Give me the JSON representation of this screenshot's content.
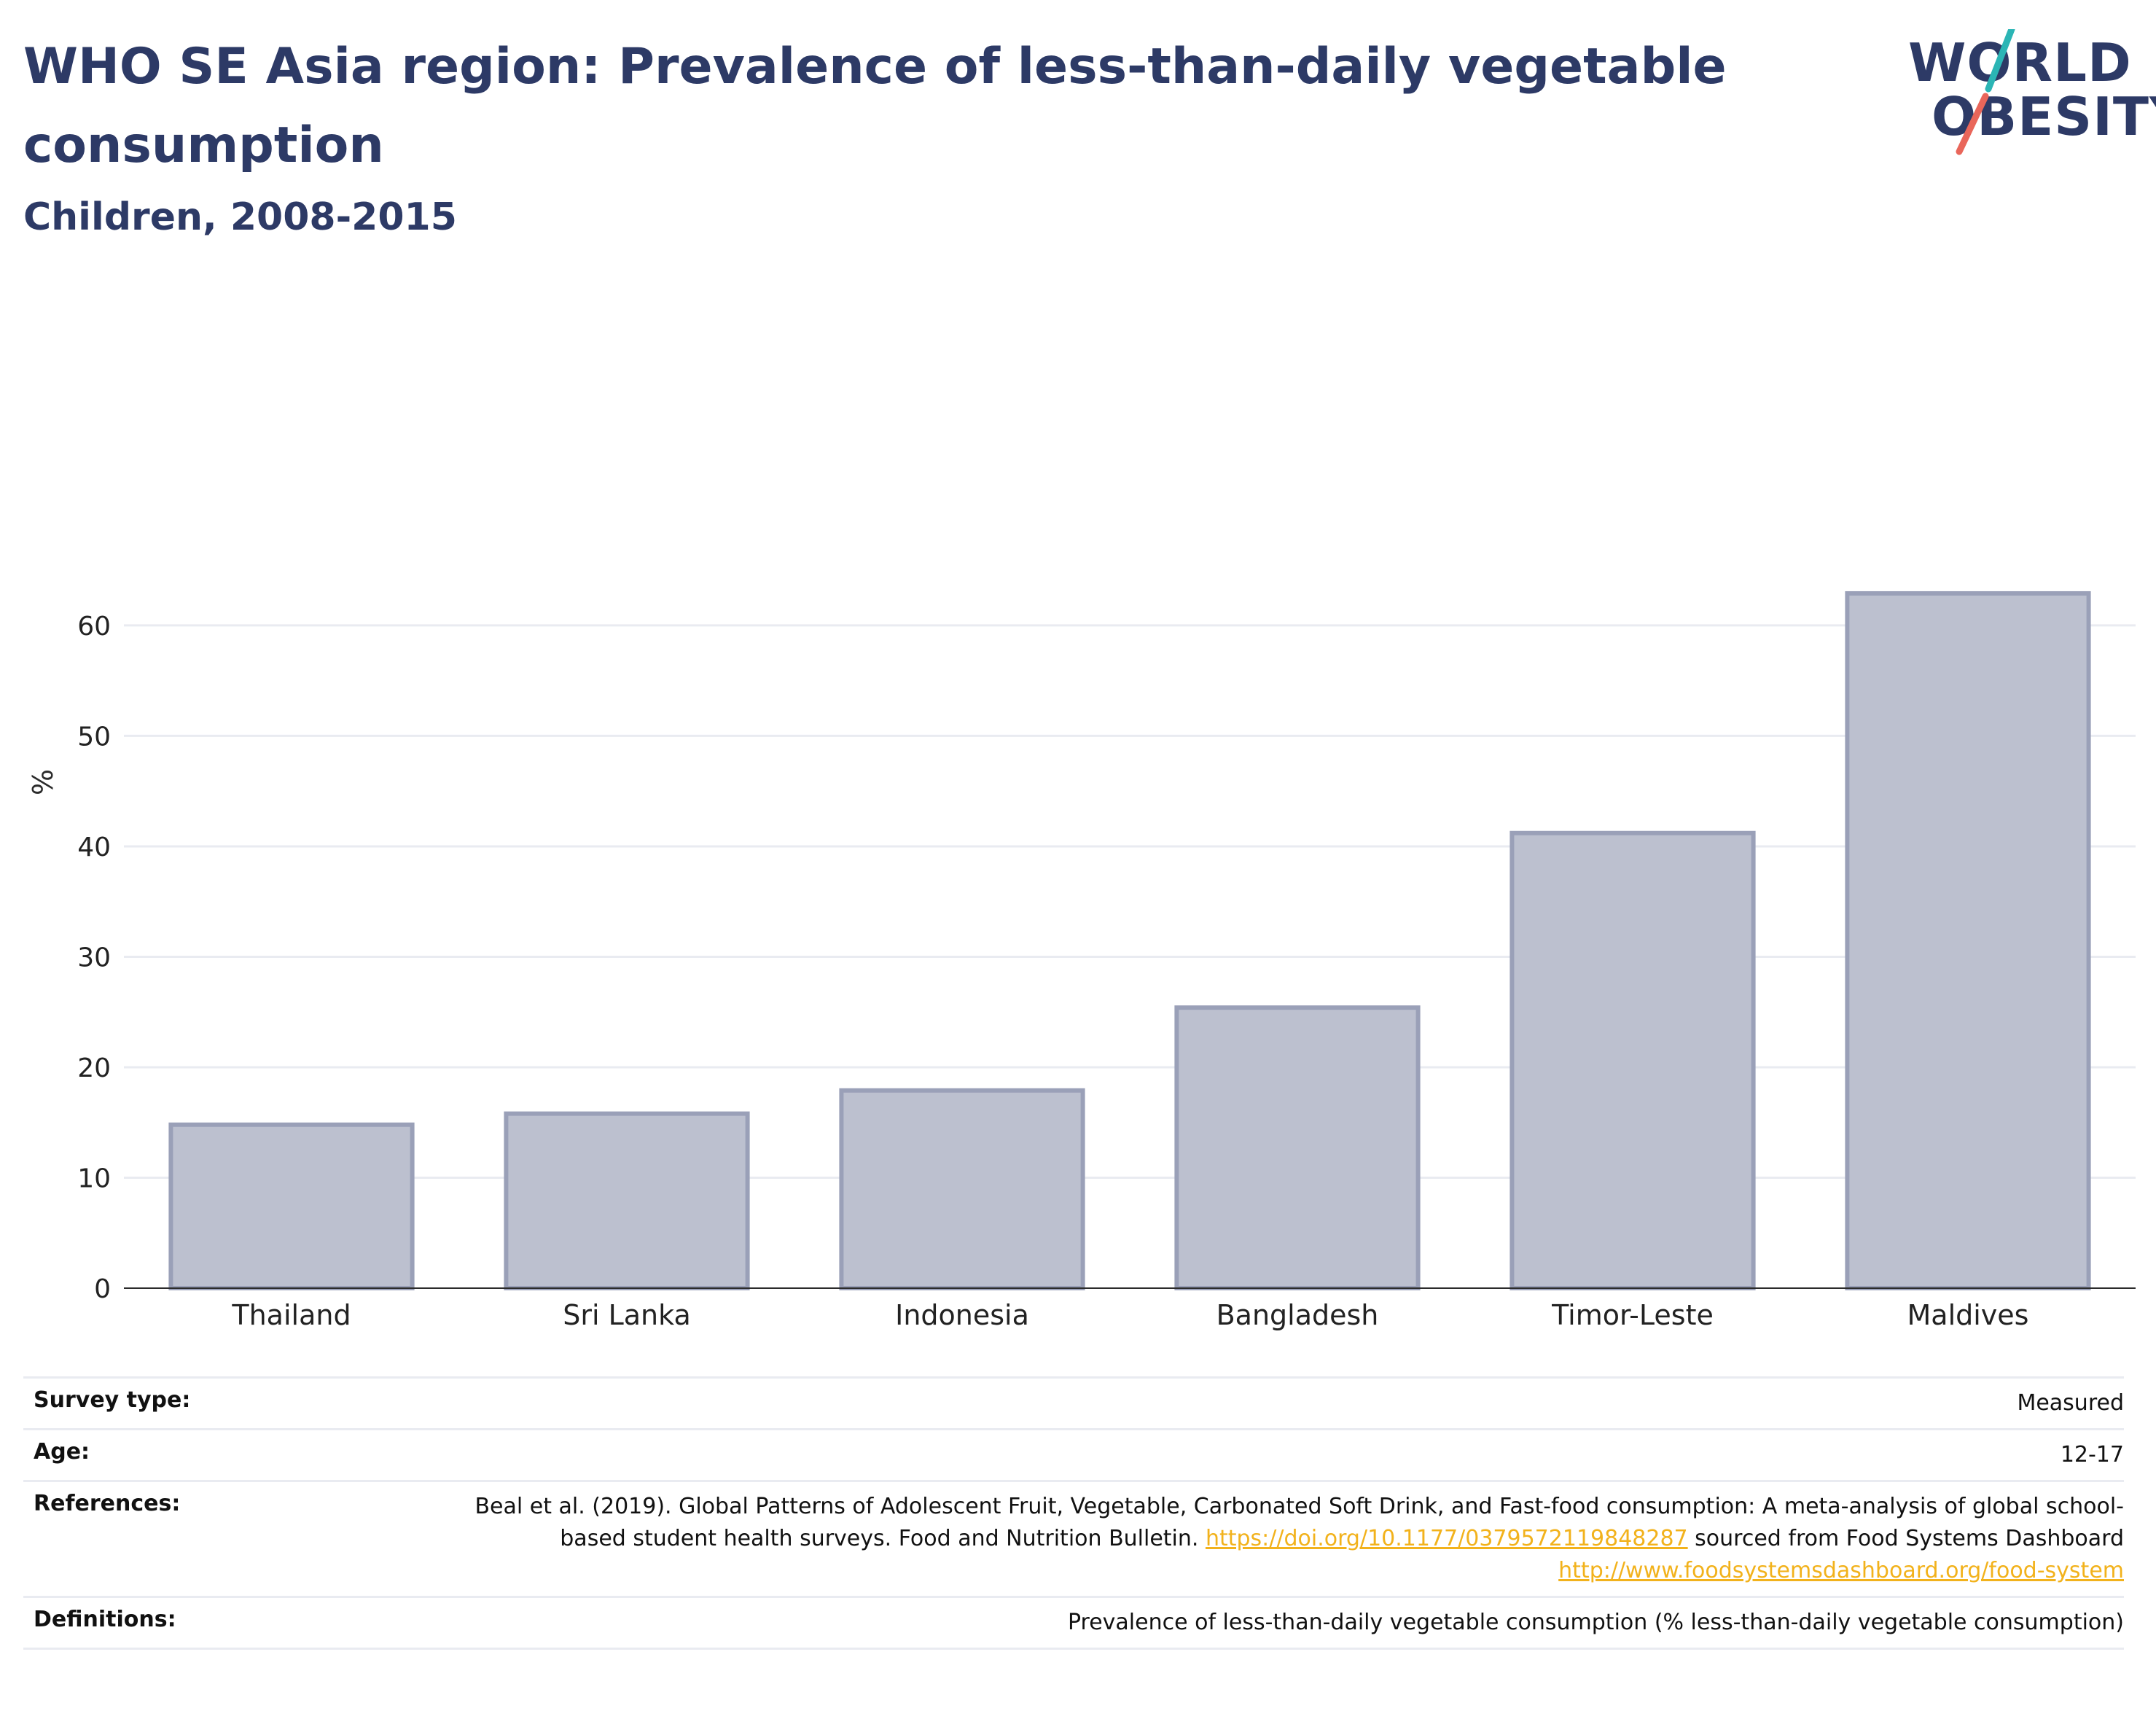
{
  "title": "WHO SE Asia region: Prevalence of less-than-daily vegetable consumption",
  "subtitle": "Children, 2008-2015",
  "logo": {
    "line1": "WORLD",
    "line2": "OBESITY"
  },
  "colors": {
    "bar_fill": "#bcc0cf",
    "bar_stroke": "#9aa0b8",
    "title": "#2d3a66",
    "link": "#f2b21c",
    "logo_teal": "#2bb5b5",
    "logo_red": "#e9665a"
  },
  "chart_data": {
    "type": "bar",
    "categories": [
      "Thailand",
      "Sri Lanka",
      "Indonesia",
      "Bangladesh",
      "Timor-Leste",
      "Maldives"
    ],
    "values": [
      14.8,
      15.8,
      17.9,
      25.4,
      41.2,
      62.9
    ],
    "ylabel": "%",
    "ylim": [
      0,
      66
    ],
    "yticks": [
      0,
      10,
      20,
      30,
      40,
      50,
      60
    ],
    "grid": true
  },
  "meta": {
    "survey_type_label": "Survey type:",
    "survey_type_value": "Measured",
    "age_label": "Age:",
    "age_value": "12-17",
    "references_label": "References:",
    "references_text1": "Beal et al. (2019). Global Patterns of Adolescent Fruit, Vegetable, Carbonated Soft Drink, and Fast-food consumption: A meta-analysis of global school-based student health surveys. Food and Nutrition Bulletin. ",
    "references_link1": "https://doi.org/10.1177/0379572119848287",
    "references_text2": " sourced from Food Systems Dashboard ",
    "references_link2": "http://www.foodsystemsdashboard.org/food-system",
    "definitions_label": "Definitions:",
    "definitions_value": "Prevalence of less-than-daily vegetable consumption (% less-than-daily vegetable consumption)"
  }
}
